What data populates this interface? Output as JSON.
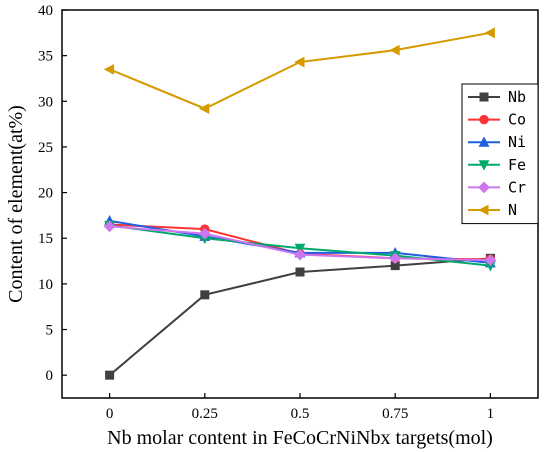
{
  "chart_data": {
    "type": "line",
    "title": "",
    "xlabel": "Nb molar content in FeCoCrNiNbx targets(mol)",
    "ylabel": "Content of element(at%)",
    "x": [
      0,
      0.25,
      0.5,
      0.75,
      1
    ],
    "x_tick_labels": [
      "0",
      "0.25",
      "0.5",
      "0.75",
      "1"
    ],
    "xlim": [
      -0.125,
      1.125
    ],
    "ylim": [
      -2.5,
      40
    ],
    "y_ticks": [
      0,
      5,
      10,
      15,
      20,
      25,
      30,
      35,
      40
    ],
    "grid": false,
    "legend_position": "right",
    "series": [
      {
        "name": "Nb",
        "color": "#404040",
        "marker": "square",
        "values": [
          0,
          8.8,
          11.3,
          12.0,
          12.8
        ]
      },
      {
        "name": "Co",
        "color": "#ff3333",
        "marker": "circle",
        "values": [
          16.5,
          16.0,
          13.3,
          12.8,
          12.7
        ]
      },
      {
        "name": "Ni",
        "color": "#1f5fe0",
        "marker": "triangle-up",
        "values": [
          16.9,
          15.2,
          13.4,
          13.4,
          12.3
        ]
      },
      {
        "name": "Fe",
        "color": "#00a86b",
        "marker": "triangle-down",
        "values": [
          16.4,
          15.0,
          13.9,
          13.1,
          12.0
        ]
      },
      {
        "name": "Cr",
        "color": "#cc77ee",
        "marker": "diamond",
        "values": [
          16.3,
          15.5,
          13.2,
          12.8,
          12.6
        ]
      },
      {
        "name": "N",
        "color": "#d49a00",
        "marker": "triangle-left",
        "values": [
          33.5,
          29.2,
          34.3,
          35.6,
          37.5
        ]
      }
    ]
  }
}
